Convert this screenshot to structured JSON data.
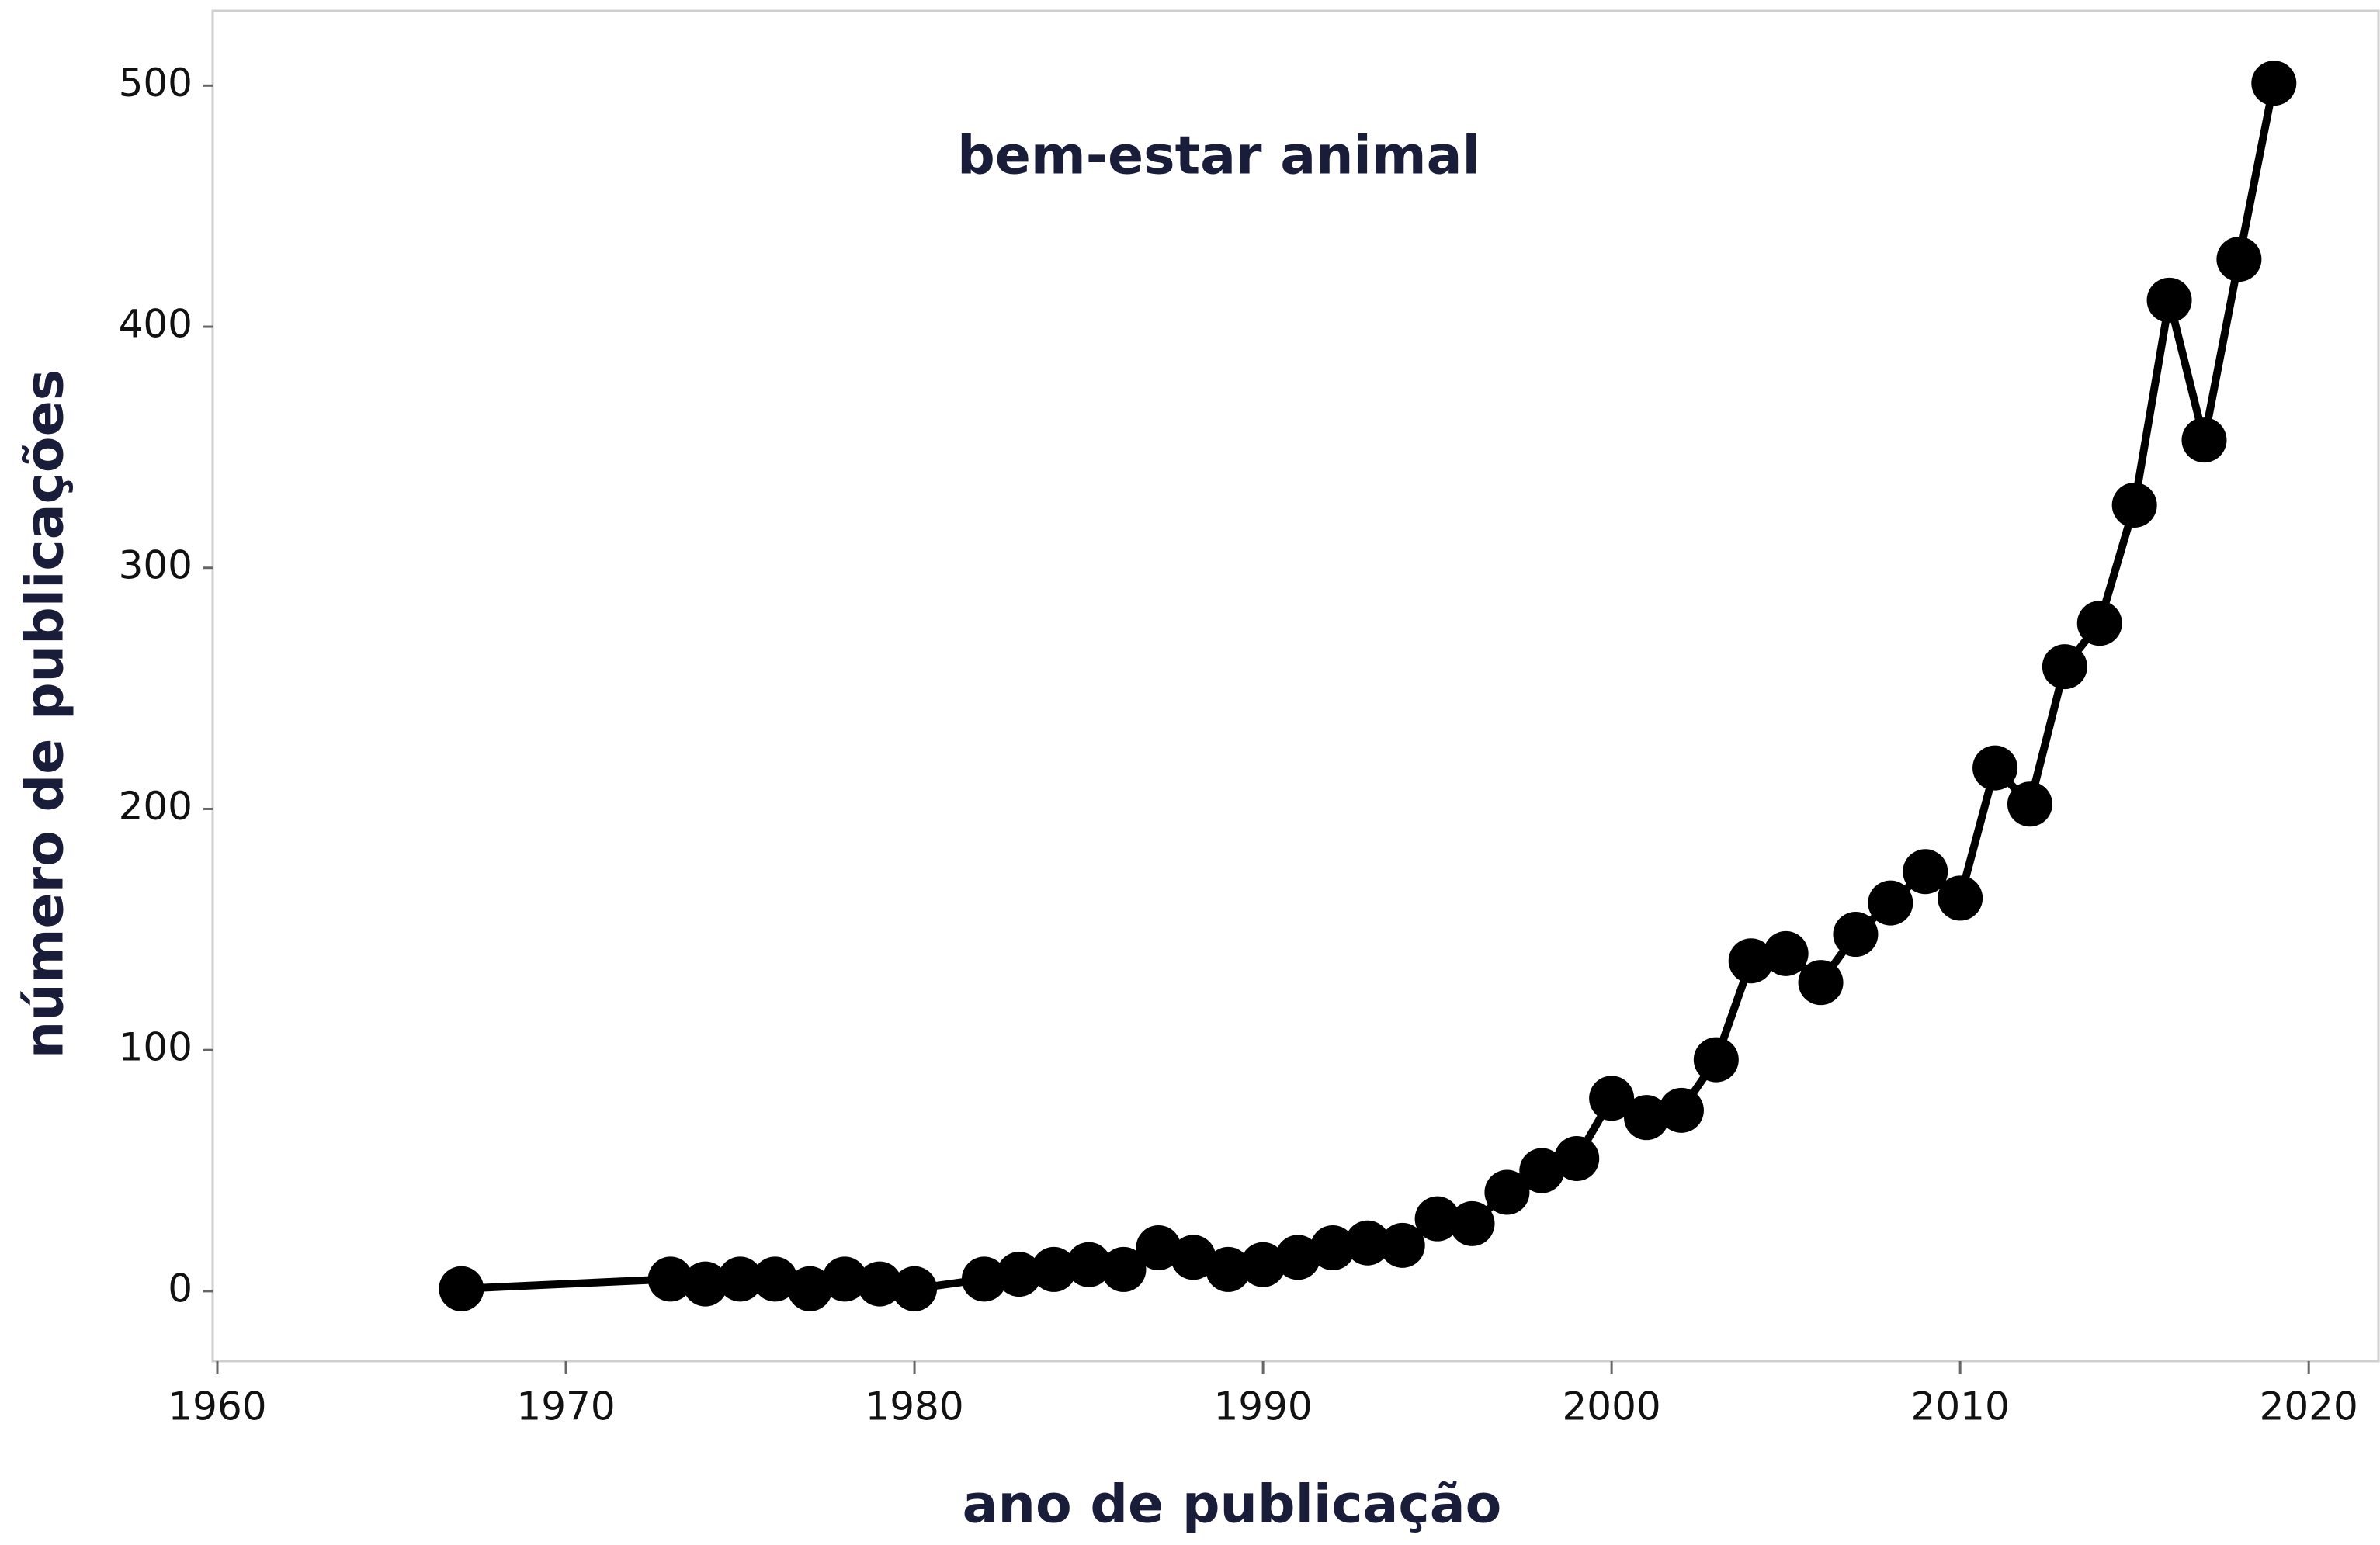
{
  "chart_data": {
    "type": "line",
    "title": "bem-estar animal",
    "xlabel": "ano de publicação",
    "ylabel": "número de publicações",
    "x": [
      1967,
      1973,
      1974,
      1975,
      1976,
      1977,
      1978,
      1979,
      1980,
      1982,
      1983,
      1984,
      1985,
      1986,
      1987,
      1988,
      1989,
      1990,
      1991,
      1992,
      1993,
      1994,
      1995,
      1996,
      1997,
      1998,
      1999,
      2000,
      2001,
      2002,
      2003,
      2004,
      2005,
      2006,
      2007,
      2008,
      2009,
      2010,
      2011,
      2012,
      2013,
      2014,
      2015,
      2016,
      2017,
      2018,
      2019
    ],
    "values": [
      1,
      5,
      3,
      5,
      5,
      1,
      5,
      3,
      1,
      5,
      7,
      9,
      11,
      9,
      18,
      14,
      9,
      11,
      14,
      18,
      20,
      19,
      30,
      28,
      41,
      50,
      55,
      80,
      72,
      75,
      96,
      137,
      140,
      128,
      148,
      161,
      174,
      163,
      217,
      202,
      259,
      277,
      326,
      411,
      353,
      428,
      501
    ],
    "color": "#000000",
    "xlim": [
      1960,
      2022
    ],
    "xticks": [
      1960,
      1970,
      1980,
      1990,
      2000,
      2010,
      2020
    ],
    "ylim": [
      -29,
      531
    ],
    "yticks": [
      0,
      100,
      200,
      300,
      400,
      500
    ]
  }
}
